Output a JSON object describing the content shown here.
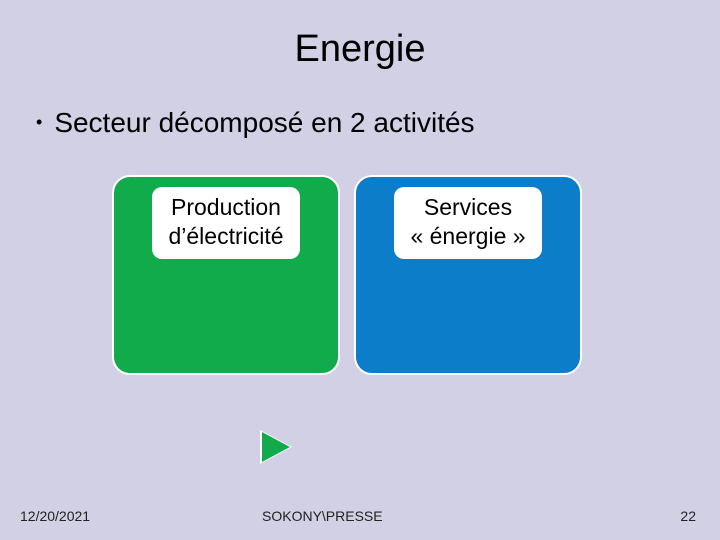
{
  "title": "Energie",
  "bullet": "Secteur décomposé en 2 activités",
  "cards": {
    "left": {
      "line1": "Production",
      "line2": "d’électricité",
      "bg": "#12ab4c"
    },
    "right": {
      "line1": "Services",
      "line2": "« énergie »",
      "bg": "#0b7dc9"
    }
  },
  "play_icon_color": "#12ab4c",
  "footer": {
    "date": "12/20/2021",
    "center": "SOKONY\\PRESSE",
    "page": "22"
  },
  "background": "#d1d0e4"
}
